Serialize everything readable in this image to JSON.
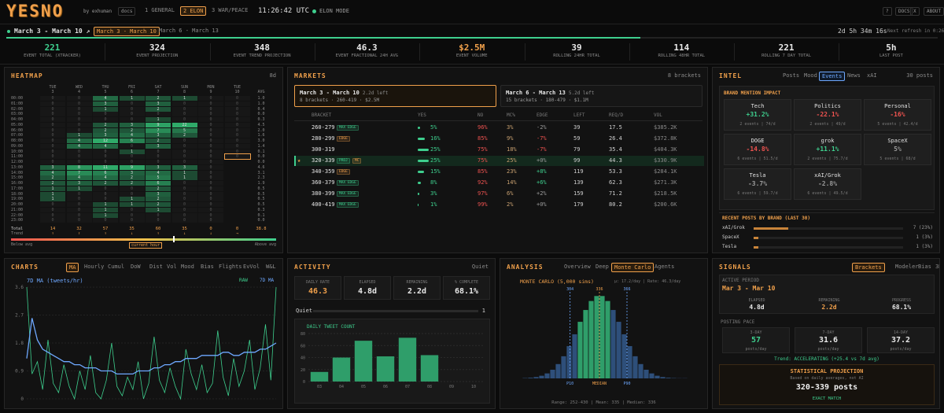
{
  "header": {
    "logo": "YESNO",
    "byline": "by exhuman",
    "docs": "docs",
    "tabs": [
      "1 GENERAL",
      "2 ELON",
      "3 WAR/PEACE"
    ],
    "active_tab": 1,
    "clock": "11:26:42 UTC",
    "mode": "ELON MODE",
    "buttons": [
      "?",
      "DOCS",
      "X",
      "ABOUT"
    ]
  },
  "event_bar": {
    "current": "March 3 - March 10 ↗",
    "tabs": [
      "March 3 - March 10",
      "March 6 - March 13"
    ],
    "active_tab": 0,
    "countdown": "2d 5h 34m 16s",
    "refresh": "Next refresh in 0:26",
    "progress": 68.1
  },
  "stats": [
    {
      "value": "221",
      "label": "EVENT TOTAL (XTRACKER)",
      "color": "#3ecf8e"
    },
    {
      "value": "324",
      "label": "EVENT PROJECTION",
      "color": "#e8e8e8"
    },
    {
      "value": "348",
      "label": "EVENT TREND PROJECTION",
      "color": "#e8e8e8"
    },
    {
      "value": "46.3",
      "label": "EVENT FRACTIONAL 24H AVG",
      "color": "#e8e8e8"
    },
    {
      "value": "$2.5M",
      "label": "EVENT VOLUME",
      "color": "#f0a04b"
    },
    {
      "value": "39",
      "label": "ROLLING 24HR TOTAL",
      "color": "#e8e8e8"
    },
    {
      "value": "114",
      "label": "ROLLING 48HR TOTAL",
      "color": "#e8e8e8"
    },
    {
      "value": "221",
      "label": "ROLLING 7 DAY TOTAL",
      "color": "#e8e8e8"
    },
    {
      "value": "5h",
      "label": "LAST POST",
      "color": "#e8e8e8"
    }
  ],
  "heatmap": {
    "title": "HEATMAP",
    "range": "8d",
    "days": [
      "TUE",
      "WED",
      "THU",
      "FRI",
      "SAT",
      "SUN",
      "MON",
      "TUE"
    ],
    "dates": [
      "3",
      "4",
      "5",
      "6",
      "7",
      "8",
      "9",
      "10"
    ],
    "avg_label": "AVG",
    "hours": [
      "00:00",
      "01:00",
      "02:00",
      "03:00",
      "04:00",
      "05:00",
      "06:00",
      "07:00",
      "08:00",
      "09:00",
      "10:00",
      "11:00",
      "12:00",
      "13:00",
      "14:00",
      "15:00",
      "16:00",
      "17:00",
      "18:00",
      "19:00",
      "20:00",
      "21:00",
      "22:00",
      "23:00"
    ],
    "cells": [
      [
        0,
        0,
        4,
        1,
        2,
        1,
        0,
        0
      ],
      [
        0,
        0,
        3,
        0,
        3,
        0,
        0,
        0
      ],
      [
        0,
        0,
        1,
        0,
        2,
        0,
        0,
        0
      ],
      [
        0,
        0,
        0,
        0,
        0,
        0,
        0,
        0
      ],
      [
        0,
        0,
        0,
        0,
        1,
        0,
        0,
        0
      ],
      [
        0,
        0,
        2,
        3,
        9,
        22,
        0,
        0
      ],
      [
        0,
        0,
        2,
        2,
        7,
        5,
        0,
        0
      ],
      [
        0,
        1,
        3,
        4,
        3,
        2,
        0,
        0
      ],
      [
        0,
        4,
        12,
        6,
        2,
        0,
        0,
        0
      ],
      [
        0,
        4,
        4,
        0,
        3,
        0,
        0,
        0
      ],
      [
        0,
        0,
        0,
        1,
        0,
        0,
        0,
        0
      ],
      [
        0,
        0,
        0,
        0,
        0,
        0,
        0,
        0
      ],
      [
        0,
        0,
        0,
        0,
        0,
        0,
        0,
        null
      ],
      [
        3,
        8,
        11,
        9,
        3,
        3,
        0,
        null
      ],
      [
        4,
        7,
        6,
        3,
        4,
        1,
        0,
        null
      ],
      [
        2,
        4,
        4,
        2,
        5,
        1,
        0,
        null
      ],
      [
        2,
        3,
        2,
        2,
        6,
        0,
        0,
        null
      ],
      [
        1,
        1,
        0,
        0,
        2,
        0,
        0,
        null
      ],
      [
        1,
        0,
        0,
        0,
        3,
        0,
        0,
        null
      ],
      [
        1,
        0,
        0,
        1,
        2,
        0,
        0,
        null
      ],
      [
        0,
        0,
        1,
        1,
        2,
        0,
        0,
        null
      ],
      [
        0,
        0,
        1,
        0,
        1,
        0,
        0,
        null
      ],
      [
        0,
        0,
        1,
        0,
        0,
        0,
        0,
        null
      ],
      [
        0,
        0,
        0,
        0,
        0,
        0,
        0,
        null
      ]
    ],
    "current": [
      11,
      7
    ],
    "avg": [
      "1.0",
      "1.0",
      "0.4",
      "0.0",
      "0.3",
      "4.5",
      "2.0",
      "1.6",
      "3.0",
      "1.4",
      "0.1",
      "0.0",
      "0.0",
      "4.6",
      "3.1",
      "2.3",
      "1.9",
      "0.5",
      "0.5",
      "0.5",
      "0.5",
      "0.3",
      "0.1",
      "0.0"
    ],
    "total_label": "Total",
    "totals": [
      14,
      32,
      57,
      35,
      60,
      35,
      0,
      0
    ],
    "total_avg": "38.8",
    "trend_label": "Trend",
    "trends": [
      "↑",
      "↑",
      "↑",
      "↓",
      "↑",
      "↓",
      "↓",
      "→"
    ],
    "legend": [
      "Below avg",
      "current hour",
      "Above avg"
    ]
  },
  "markets": {
    "title": "MARKETS",
    "count": "8 brackets",
    "active_event": 0,
    "events": [
      {
        "name": "March 3 - March 10",
        "left": "2.2d left",
        "info": "8 brackets · 260-419 · $2.5M"
      },
      {
        "name": "March 6 - March 13",
        "left": "5.2d left",
        "info": "15 brackets · 180-479 · $1.1M"
      }
    ],
    "columns": [
      "BRACKET",
      "YES",
      "NO",
      "MC%",
      "EDGE",
      "LEFT",
      "REQ/D",
      "VOL"
    ],
    "highlight": 3,
    "rows": [
      {
        "bracket": "260-279",
        "tags": [
          {
            "text": "MAX EDGE",
            "color": "#3ecf8e"
          }
        ],
        "yes": {
          "value": 5,
          "label": "5%"
        },
        "no": "96%",
        "mc": "3%",
        "edge": "-2%",
        "edge_tone": "flat",
        "left": 39,
        "req": 17.5,
        "vol": "$385.2K"
      },
      {
        "bracket": "280-299",
        "tags": [
          {
            "text": "EDGE",
            "color": "#f0a04b"
          }
        ],
        "yes": {
          "value": 16,
          "label": "16%"
        },
        "no": "85%",
        "mc": "9%",
        "edge": "-7%",
        "edge_tone": "down",
        "left": 59,
        "req": 26.4,
        "vol": "$372.8K"
      },
      {
        "bracket": "300-319",
        "tags": [],
        "yes": {
          "value": 25,
          "label": "25%"
        },
        "no": "75%",
        "mc": "18%",
        "edge": "-7%",
        "edge_tone": "down",
        "left": 79,
        "req": 35.4,
        "vol": "$404.3K"
      },
      {
        "bracket": "320-339",
        "star": "★",
        "tags": [
          {
            "text": "PROJ",
            "color": "#3ecf8e"
          },
          {
            "text": "MC",
            "color": "#f0a04b"
          }
        ],
        "yes": {
          "value": 25,
          "label": "25%"
        },
        "no": "75%",
        "mc": "25%",
        "edge": "+0%",
        "edge_tone": "flat",
        "left": 99,
        "req": 44.3,
        "vol": "$330.9K"
      },
      {
        "bracket": "340-359",
        "tags": [
          {
            "text": "EDGE",
            "color": "#f0a04b"
          }
        ],
        "yes": {
          "value": 15,
          "label": "15%"
        },
        "no": "85%",
        "mc": "23%",
        "edge": "+8%",
        "edge_tone": "up",
        "left": 119,
        "req": 53.3,
        "vol": "$284.1K"
      },
      {
        "bracket": "360-379",
        "tags": [
          {
            "text": "MAX EDGE",
            "color": "#3ecf8e"
          }
        ],
        "yes": {
          "value": 8,
          "label": "8%"
        },
        "no": "92%",
        "mc": "14%",
        "edge": "+6%",
        "edge_tone": "up",
        "left": 139,
        "req": 62.3,
        "vol": "$271.3K"
      },
      {
        "bracket": "380-399",
        "tags": [
          {
            "text": "MAX EDGE",
            "color": "#3ecf8e"
          }
        ],
        "yes": {
          "value": 3,
          "label": "3%"
        },
        "no": "97%",
        "mc": "6%",
        "edge": "+2%",
        "edge_tone": "flat",
        "left": 159,
        "req": 71.2,
        "vol": "$218.5K"
      },
      {
        "bracket": "400-419",
        "tags": [
          {
            "text": "MAX EDGE",
            "color": "#3ecf8e"
          }
        ],
        "yes": {
          "value": 1,
          "label": "1%"
        },
        "no": "99%",
        "mc": "2%",
        "edge": "+0%",
        "edge_tone": "flat",
        "left": 179,
        "req": 80.2,
        "vol": "$200.6K"
      }
    ]
  },
  "intel": {
    "title": "INTEL",
    "tabs": [
      "Posts",
      "Mood",
      "Events",
      "News",
      "xAI"
    ],
    "active_tab": 2,
    "count": "30 posts",
    "impact_title": "BRAND MENTION IMPACT",
    "brands": [
      {
        "name": "Tech",
        "change": "+31.2%",
        "tone": "up",
        "info": "2 events | 74/d"
      },
      {
        "name": "Politics",
        "change": "-22.1%",
        "tone": "down",
        "info": "2 events | 49/d"
      },
      {
        "name": "Personal",
        "change": "-16%",
        "tone": "down",
        "info": "5 events | 42.4/d"
      },
      {
        "name": "DOGE",
        "change": "-14.8%",
        "tone": "down",
        "info": "6 events | 51.5/d"
      },
      {
        "name": "grok",
        "change": "+11.1%",
        "tone": "up",
        "info": "2 events | 75.7/d"
      },
      {
        "name": "SpaceX",
        "change": "5%",
        "tone": "flat",
        "info": "5 events | 68/d"
      },
      {
        "name": "Tesla",
        "change": "-3.7%",
        "tone": "flat",
        "info": "6 events | 59.7/d"
      },
      {
        "name": "xAI/Grok",
        "change": "-2.8%",
        "tone": "flat",
        "info": "6 events | 49.5/d"
      }
    ],
    "recent_title": "RECENT POSTS BY BRAND (LAST 30)",
    "recent": [
      {
        "name": "xAI/Grok",
        "count": 7,
        "label": "7 (23%)"
      },
      {
        "name": "SpaceX",
        "count": 1,
        "label": "1 (3%)"
      },
      {
        "name": "Tesla",
        "count": 1,
        "label": "1 (3%)"
      }
    ],
    "recent_max": 30
  },
  "charts": {
    "title": "CHARTS",
    "tabs": [
      "MA",
      "Hourly",
      "Cumul",
      "DoW",
      "Dist",
      "Vol",
      "Mood",
      "Bias",
      "Flights",
      "EvVol",
      "W&L"
    ],
    "active_tab": 0,
    "chart_data": {
      "type": "line",
      "subtitle": "7D MA (tweets/hr)",
      "ylim": [
        0,
        3.6
      ],
      "yticks": [
        0,
        0.9,
        1.8,
        2.7,
        3.6
      ],
      "grid": true,
      "series": [
        {
          "name": "RAW",
          "color": "#3ecf8e",
          "values": [
            3.6,
            0.8,
            1.2,
            0.3,
            1.9,
            0.5,
            0.2,
            1.1,
            0.4,
            0,
            0.9,
            0.3,
            1.4,
            0.2,
            0,
            0.6,
            1.8,
            0.4,
            0.1,
            0.7,
            0.3,
            1.2,
            0,
            0.5,
            2.0,
            0.6,
            0.2,
            1.0,
            0.4,
            0,
            1.6,
            0.8,
            0.3,
            1.1,
            0.2,
            0.5,
            2.2,
            0.7,
            0.1,
            1.3,
            0.4,
            0.9,
            1.9,
            0.3,
            1.0,
            2.4,
            0.6,
            3.6
          ]
        },
        {
          "name": "7D MA",
          "color": "#6ea8ff",
          "values": [
            1.3,
            2.6,
            1.9,
            1.6,
            1.5,
            1.4,
            1.3,
            1.2,
            1.2,
            1.1,
            1.1,
            1.0,
            1.0,
            1.0,
            0.9,
            0.9,
            0.9,
            0.8,
            0.8,
            0.8,
            0.8,
            0.9,
            0.9,
            0.9,
            1.0,
            1.0,
            1.1,
            1.1,
            1.2,
            1.2,
            1.3,
            1.3,
            1.3,
            1.4,
            1.4,
            1.4,
            1.4,
            1.5,
            1.5,
            1.4,
            1.4,
            1.5,
            1.5,
            1.5,
            1.6,
            1.6,
            1.7,
            1.8
          ]
        }
      ]
    }
  },
  "activity": {
    "title": "ACTIVITY",
    "mood": "Quiet",
    "boxes": [
      {
        "label": "DAILY RATE",
        "value": "46.3",
        "color": "#f0a04b"
      },
      {
        "label": "ELAPSED",
        "value": "4.8d",
        "color": "#e8e8e8"
      },
      {
        "label": "REMAINING",
        "value": "2.2d",
        "color": "#e8e8e8"
      },
      {
        "label": "% COMPLETE",
        "value": "68.1%",
        "color": "#e8e8e8"
      }
    ],
    "mood_label": "Quiet",
    "mood_value": 1,
    "chart_data": {
      "type": "bar",
      "title": "DAILY TWEET COUNT",
      "categories": [
        "03",
        "04",
        "05",
        "06",
        "07",
        "08",
        "09",
        "10"
      ],
      "values": [
        16,
        40,
        68,
        42,
        73,
        44,
        null,
        null
      ],
      "color": "#2f9e6a",
      "ylim": [
        0,
        80
      ],
      "yticks": [
        0,
        20,
        40,
        60,
        80
      ],
      "grid": true
    }
  },
  "analysis": {
    "title": "ANALYSIS",
    "tabs": [
      "Overview",
      "Deep",
      "Monte Carlo",
      "Agents"
    ],
    "active_tab": 2,
    "chart_data": {
      "type": "histogram",
      "title": "MONTE CARLO (5,000 sims)",
      "subtitle": "μ: 17.2/day | Rate: 46.3/day",
      "bins": [
        252,
        258,
        264,
        270,
        276,
        282,
        288,
        294,
        300,
        306,
        312,
        318,
        324,
        330,
        336,
        342,
        348,
        354,
        360,
        366,
        372,
        378,
        384,
        390,
        396,
        402,
        408,
        414,
        420,
        426,
        432
      ],
      "counts": [
        2,
        4,
        8,
        16,
        30,
        52,
        86,
        133,
        194,
        265,
        340,
        411,
        465,
        495,
        495,
        465,
        411,
        340,
        265,
        194,
        133,
        86,
        52,
        30,
        16,
        8,
        4,
        2,
        1,
        1
      ],
      "xlim": [
        252,
        432
      ],
      "ylim": [
        0,
        520
      ],
      "color": "#2e4f7a",
      "highlight_color": "#2f9e6a",
      "highlight_range": [
        312,
        348
      ],
      "markers": [
        {
          "value": 304,
          "label": "P10",
          "color": "#6ea8ff"
        },
        {
          "value": 336,
          "label": "MEDIAN",
          "color": "#f0a04b"
        },
        {
          "value": 366,
          "label": "P90",
          "color": "#6ea8ff"
        }
      ],
      "footer": "Range: 252-430 | Mean: 335 | Median: 336"
    }
  },
  "signals": {
    "title": "SIGNALS",
    "tabs": [
      "Brackets",
      "Modeler",
      "Bias",
      "3D"
    ],
    "active_tab": 0,
    "period_label": "ACTIVE PERIOD",
    "period": "Mar 3 - Mar 10",
    "period_stats": [
      {
        "label": "ELAPSED",
        "value": "4.8d",
        "color": "#e8e8e8"
      },
      {
        "label": "REMAINING",
        "value": "2.2d",
        "color": "#f0a04b"
      },
      {
        "label": "PROGRESS",
        "value": "68.1%",
        "color": "#e8e8e8"
      }
    ],
    "pace_label": "POSTING PACE",
    "pace": [
      {
        "label": "3-DAY",
        "value": 57,
        "unit": "posts/day",
        "color": "#3ecf8e"
      },
      {
        "label": "7-DAY",
        "value": 31.6,
        "unit": "posts/day",
        "color": "#e8e8e8"
      },
      {
        "label": "14-DAY",
        "value": 37.2,
        "unit": "posts/day",
        "color": "#e8e8e8"
      }
    ],
    "trend": "Trend: ACCELERATING (+25.4 vs 7d avg)",
    "projection_title": "STATISTICAL PROJECTION",
    "projection_note": "Based on daily averages, not AI",
    "projection": "320-339 posts",
    "match": "EXACT MATCH"
  }
}
